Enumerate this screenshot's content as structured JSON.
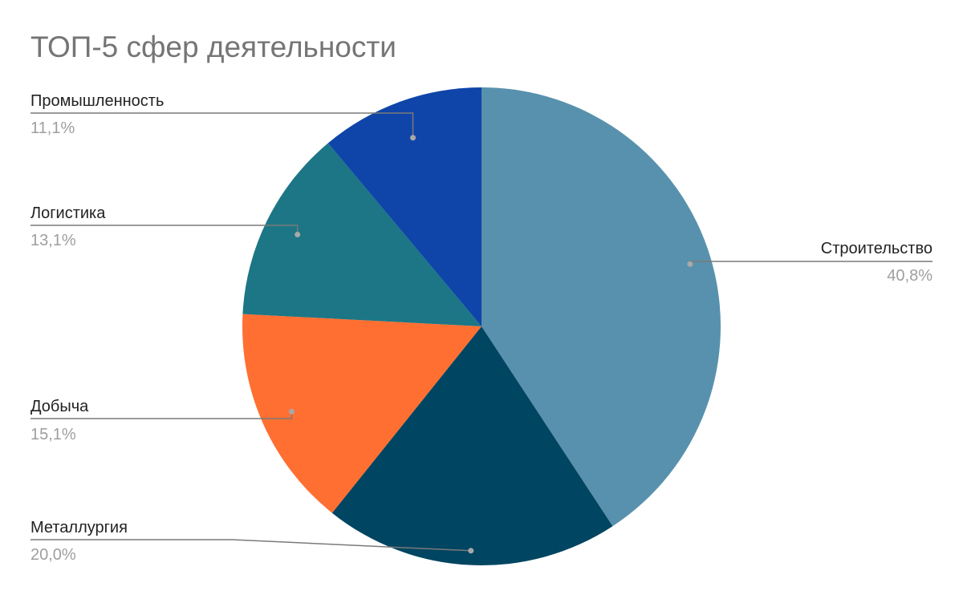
{
  "chart_data": {
    "type": "pie",
    "title": "ТОП-5 сфер деятельности",
    "slices": [
      {
        "label": "Строительство",
        "value": 40.8,
        "display": "40,8%",
        "color": "#5891AD"
      },
      {
        "label": "Металлургия",
        "value": 20.0,
        "display": "20,0%",
        "color": "#004561"
      },
      {
        "label": "Добыча",
        "value": 15.1,
        "display": "15,1%",
        "color": "#FF6F31"
      },
      {
        "label": "Логистика",
        "value": 13.1,
        "display": "13,1%",
        "color": "#1C7685"
      },
      {
        "label": "Промышленность",
        "value": 11.1,
        "display": "11,1%",
        "color": "#0F45A8"
      }
    ],
    "legend": "none"
  }
}
